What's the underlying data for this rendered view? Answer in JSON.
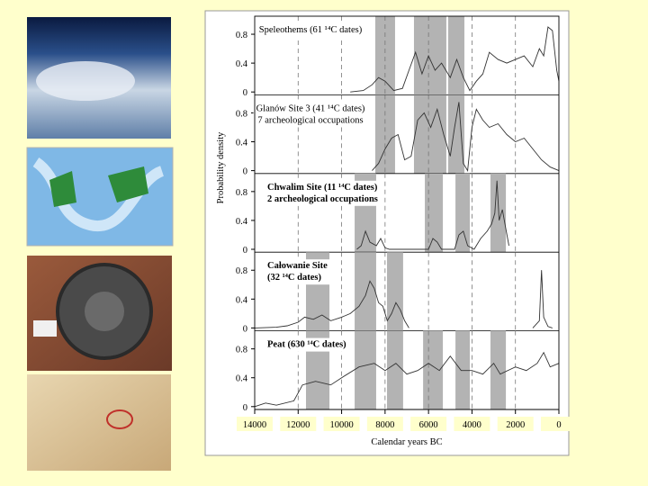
{
  "chart_data": {
    "type": "line",
    "ylabel": "Probability density",
    "xlabel": "Calendar years BC",
    "xlim": [
      14000,
      0
    ],
    "xticks": [
      14000,
      12000,
      10000,
      8000,
      6000,
      4000,
      2000,
      0
    ],
    "grid": true,
    "color": "#333333",
    "band_color": "#b3b3b3",
    "panels": [
      {
        "label": [
          "Speleothems (61 ¹⁴C dates)"
        ],
        "ylim": [
          -0.04,
          1.05
        ],
        "yticks": [
          0,
          0.4,
          0.8
        ],
        "bands": [
          [
            8450,
            7540
          ],
          [
            6670,
            5180
          ],
          [
            5095,
            4350
          ]
        ],
        "x": [
          9600,
          9000,
          8600,
          8300,
          8000,
          7600,
          7200,
          6900,
          6600,
          6300,
          6000,
          5700,
          5400,
          5000,
          4700,
          4400,
          4100,
          3800,
          3500,
          3200,
          2800,
          2400,
          2000,
          1600,
          1200,
          900,
          700,
          500,
          300,
          100,
          0
        ],
        "values": [
          0,
          0.02,
          0.1,
          0.2,
          0.15,
          0.02,
          0.05,
          0.3,
          0.55,
          0.25,
          0.5,
          0.3,
          0.4,
          0.2,
          0.45,
          0.2,
          0.02,
          0.15,
          0.25,
          0.55,
          0.45,
          0.4,
          0.45,
          0.5,
          0.35,
          0.6,
          0.5,
          0.9,
          0.85,
          0.3,
          0.15
        ]
      },
      {
        "label": [
          "Glanów Site 3 (41 ¹⁴C dates)",
          "7 archeological occupations"
        ],
        "ylim": [
          -0.04,
          1.05
        ],
        "yticks": [
          0,
          0.4,
          0.8
        ],
        "bands": [
          [
            8450,
            7540
          ],
          [
            6670,
            5180
          ],
          [
            5095,
            4350
          ]
        ],
        "x": [
          8600,
          8300,
          8000,
          7700,
          7400,
          7100,
          6800,
          6500,
          6200,
          5900,
          5600,
          5300,
          5000,
          4800,
          4600,
          4400,
          4200,
          4000,
          3800,
          3500,
          3200,
          2800,
          2400,
          2000,
          1600,
          1200,
          800,
          400,
          0
        ],
        "values": [
          0,
          0.1,
          0.3,
          0.45,
          0.5,
          0.15,
          0.2,
          0.7,
          0.8,
          0.6,
          0.85,
          0.5,
          0.2,
          0.6,
          0.95,
          0.1,
          0,
          0.6,
          0.85,
          0.7,
          0.6,
          0.65,
          0.5,
          0.4,
          0.45,
          0.3,
          0.15,
          0.05,
          0
        ]
      },
      {
        "label": [
          "Chwalim Site (11 ¹⁴C dates)",
          "2 archeological occupations"
        ],
        "ylim": [
          -0.04,
          1.05
        ],
        "yticks": [
          0,
          0.4,
          0.8
        ],
        "bands": [
          [
            9400,
            8410
          ],
          [
            6170,
            5340
          ],
          [
            4760,
            4100
          ],
          [
            3150,
            2440
          ]
        ],
        "x": [
          9300,
          9100,
          8900,
          8700,
          8400,
          8200,
          8000,
          7800,
          6000,
          5800,
          5600,
          5400,
          4800,
          4600,
          4400,
          4200,
          3900,
          3600,
          3300,
          3100,
          2950,
          2850,
          2750,
          2600,
          2450,
          2300
        ],
        "values": [
          0,
          0.05,
          0.25,
          0.1,
          0.05,
          0.15,
          0.02,
          0,
          0,
          0.15,
          0.1,
          0,
          0,
          0.2,
          0.25,
          0.05,
          0,
          0.15,
          0.25,
          0.35,
          0.5,
          0.95,
          0.4,
          0.55,
          0.3,
          0.05
        ]
      },
      {
        "label": [
          "Całowanie Site",
          "(32 ¹⁴C dates)"
        ],
        "ylim": [
          -0.04,
          1.05
        ],
        "yticks": [
          0,
          0.4,
          0.8
        ],
        "bands": [
          [
            11640,
            10560
          ],
          [
            9400,
            8410
          ],
          [
            7910,
            7170
          ]
        ],
        "x": [
          14000,
          13000,
          12500,
          12000,
          11700,
          11300,
          10900,
          10500,
          10000,
          9600,
          9200,
          8900,
          8700,
          8500,
          8300,
          8100,
          7900,
          7700,
          7500,
          7300,
          7100,
          6900,
          4000,
          1200,
          900,
          800,
          700,
          500,
          300
        ],
        "values": [
          0,
          0.01,
          0.03,
          0.08,
          0.15,
          0.12,
          0.18,
          0.1,
          0.15,
          0.2,
          0.3,
          0.45,
          0.65,
          0.55,
          0.35,
          0.3,
          0.1,
          0.2,
          0.35,
          0.25,
          0.1,
          0,
          null,
          0,
          0.1,
          0.8,
          0.15,
          0.02,
          0
        ]
      },
      {
        "label": [
          "Peat (630 ¹⁴C dates)"
        ],
        "ylim": [
          -0.04,
          1.05
        ],
        "yticks": [
          0,
          0.4,
          0.8
        ],
        "bands": [
          [
            11640,
            10560
          ],
          [
            9400,
            8410
          ],
          [
            7910,
            7170
          ],
          [
            6250,
            5340
          ],
          [
            4760,
            4100
          ],
          [
            3150,
            2440
          ]
        ],
        "x": [
          14000,
          13500,
          13000,
          12200,
          11800,
          11200,
          10500,
          10000,
          9200,
          8500,
          8000,
          7500,
          7000,
          6500,
          6000,
          5500,
          5000,
          4500,
          4000,
          3500,
          3000,
          2700,
          2000,
          1500,
          1000,
          700,
          400,
          0
        ],
        "values": [
          0,
          0.05,
          0.02,
          0.08,
          0.3,
          0.35,
          0.3,
          0.4,
          0.55,
          0.6,
          0.5,
          0.6,
          0.45,
          0.5,
          0.6,
          0.5,
          0.7,
          0.5,
          0.5,
          0.45,
          0.6,
          0.45,
          0.55,
          0.5,
          0.6,
          0.75,
          0.55,
          0.6
        ]
      }
    ]
  }
}
